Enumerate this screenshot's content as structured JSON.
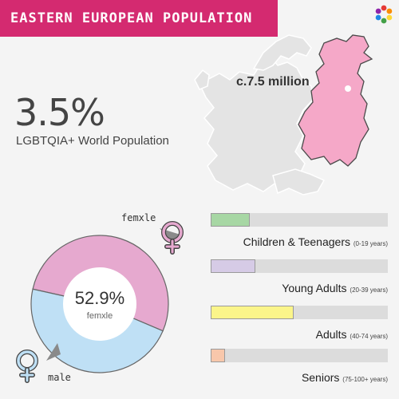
{
  "header": {
    "title": "EASTERN EUROPEAN POPULATION",
    "banner_color": "#d42a70",
    "logo": "rainbow-flower-logo-icon"
  },
  "map": {
    "label": "c.7.5 million",
    "highlight_color": "#f5a8c8",
    "base_color": "#e4e4e4",
    "marker": "white-dot"
  },
  "headline": {
    "percent": "3.5%",
    "caption": "LGBTQIA+ World Population"
  },
  "chart_data": [
    {
      "type": "pie",
      "style": "donut",
      "center_value": "52.9%",
      "center_label": "femxle",
      "slices": [
        {
          "label": "femxle",
          "value": 52.9,
          "color": "#e6a9cf",
          "icon": "female-symbol-icon"
        },
        {
          "label": "male",
          "value": 47.1,
          "color": "#bfe0f5",
          "icon": "male-symbol-icon"
        }
      ]
    },
    {
      "type": "bar",
      "orientation": "horizontal",
      "categories": [
        "Children & Teenagers",
        "Young Adults",
        "Adults",
        "Seniors"
      ],
      "ranges": [
        "(0-19 years)",
        "(20-39 years)",
        "(40-74 years)",
        "(75-100+ years)"
      ],
      "values": [
        22,
        25,
        47,
        8
      ],
      "xlim": [
        0,
        100
      ],
      "colors": [
        "#a7d7a4",
        "#d6cbe6",
        "#fbf58a",
        "#f8c7ab"
      ]
    }
  ]
}
